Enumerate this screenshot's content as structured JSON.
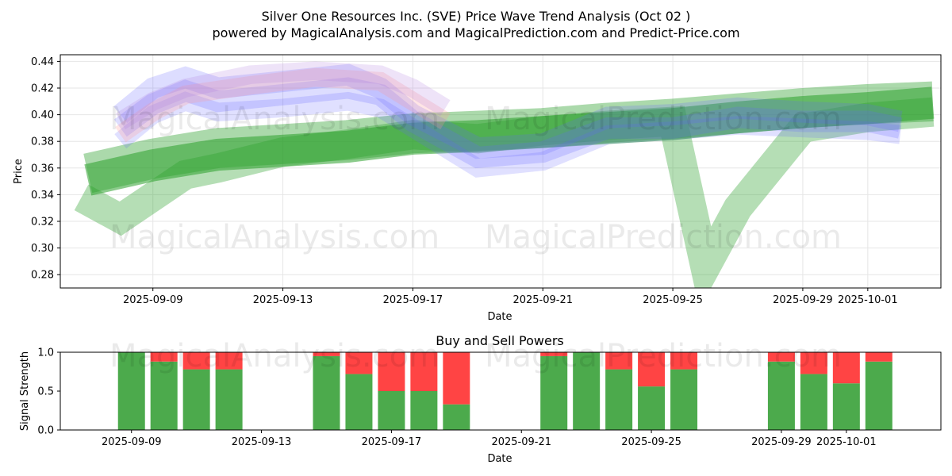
{
  "header": {
    "title": "Silver One Resources Inc. (SVE) Price Wave Trend Analysis (Oct 02 )",
    "subtitle": "powered by MagicalAnalysis.com and MagicalPrediction.com and Predict-Price.com"
  },
  "watermarks": [
    "MagicalAnalysis.com",
    "MagicalPrediction.com"
  ],
  "colors": {
    "green": "#2ca02c",
    "blue": "#6666ff",
    "red_pink": "#ff9999",
    "purple": "#b07fe0",
    "buy": "#4caa4c",
    "sell": "#ff4444"
  },
  "chart_data": [
    {
      "type": "area",
      "title": "",
      "xlabel": "Date",
      "ylabel": "Price",
      "x_ticks": [
        "2025-09-09",
        "2025-09-13",
        "2025-09-17",
        "2025-09-21",
        "2025-09-25",
        "2025-09-29",
        "2025-10-01"
      ],
      "y_ticks": [
        "0.28",
        "0.30",
        "0.32",
        "0.34",
        "0.36",
        "0.38",
        "0.40",
        "0.42",
        "0.44"
      ],
      "xlim": [
        "2025-09-06",
        "2025-10-04"
      ],
      "ylim": [
        0.27,
        0.445
      ],
      "grid": true,
      "bands": [
        {
          "color": "green",
          "opacity": 0.55,
          "width": 0.024,
          "points": [
            [
              "2025-09-07",
              0.351
            ],
            [
              "2025-09-09",
              0.362
            ],
            [
              "2025-09-11",
              0.37
            ],
            [
              "2025-09-13",
              0.373
            ],
            [
              "2025-09-15",
              0.376
            ],
            [
              "2025-09-17",
              0.382
            ],
            [
              "2025-09-19",
              0.384
            ],
            [
              "2025-09-21",
              0.387
            ],
            [
              "2025-09-23",
              0.39
            ],
            [
              "2025-09-25",
              0.393
            ],
            [
              "2025-09-27",
              0.398
            ],
            [
              "2025-09-29",
              0.402
            ],
            [
              "2025-10-01",
              0.405
            ],
            [
              "2025-10-03",
              0.409
            ]
          ]
        },
        {
          "color": "green",
          "opacity": 0.4,
          "width": 0.03,
          "points": [
            [
              "2025-09-07",
              0.356
            ],
            [
              "2025-09-09",
              0.367
            ],
            [
              "2025-09-11",
              0.375
            ],
            [
              "2025-09-13",
              0.378
            ],
            [
              "2025-09-15",
              0.381
            ],
            [
              "2025-09-17",
              0.386
            ],
            [
              "2025-09-19",
              0.388
            ],
            [
              "2025-09-21",
              0.39
            ],
            [
              "2025-09-23",
              0.394
            ],
            [
              "2025-09-25",
              0.397
            ],
            [
              "2025-09-27",
              0.401
            ],
            [
              "2025-09-29",
              0.405
            ],
            [
              "2025-10-01",
              0.408
            ],
            [
              "2025-10-03",
              0.41
            ]
          ]
        },
        {
          "color": "green",
          "opacity": 0.35,
          "width": 0.022,
          "points": [
            [
              "2025-09-06.8",
              0.338
            ],
            [
              "2025-09-08",
              0.322
            ],
            [
              "2025-09-10",
              0.355
            ],
            [
              "2025-09-11",
              0.36
            ],
            [
              "2025-09-13",
              0.372
            ],
            [
              "2025-09-15",
              0.378
            ],
            [
              "2025-09-17",
              0.385
            ],
            [
              "2025-09-19",
              0.382
            ],
            [
              "2025-09-21",
              0.388
            ],
            [
              "2025-09-23",
              0.392
            ],
            [
              "2025-09-25",
              0.395
            ],
            [
              "2025-09-26",
              0.285
            ],
            [
              "2025-09-27",
              0.33
            ],
            [
              "2025-09-29",
              0.39
            ],
            [
              "2025-10-01",
              0.398
            ],
            [
              "2025-10-03",
              0.402
            ]
          ]
        },
        {
          "color": "blue",
          "opacity": 0.22,
          "width": 0.016,
          "points": [
            [
              "2025-09-08",
              0.39
            ],
            [
              "2025-09-09",
              0.408
            ],
            [
              "2025-09-10",
              0.418
            ],
            [
              "2025-09-11",
              0.41
            ],
            [
              "2025-09-13",
              0.415
            ],
            [
              "2025-09-15",
              0.42
            ],
            [
              "2025-09-16",
              0.415
            ],
            [
              "2025-09-17",
              0.395
            ],
            [
              "2025-09-19",
              0.368
            ],
            [
              "2025-09-21",
              0.372
            ],
            [
              "2025-09-23",
              0.39
            ],
            [
              "2025-09-25",
              0.39
            ],
            [
              "2025-09-27",
              0.398
            ],
            [
              "2025-09-29",
              0.395
            ],
            [
              "2025-10-01",
              0.395
            ],
            [
              "2025-10-02",
              0.39
            ]
          ]
        },
        {
          "color": "blue",
          "opacity": 0.22,
          "width": 0.016,
          "points": [
            [
              "2025-09-08",
              0.4
            ],
            [
              "2025-09-09",
              0.42
            ],
            [
              "2025-09-10",
              0.428
            ],
            [
              "2025-09-11",
              0.42
            ],
            [
              "2025-09-13",
              0.425
            ],
            [
              "2025-09-15",
              0.43
            ],
            [
              "2025-09-16",
              0.42
            ],
            [
              "2025-09-17",
              0.4
            ],
            [
              "2025-09-19",
              0.375
            ],
            [
              "2025-09-21",
              0.378
            ],
            [
              "2025-09-23",
              0.398
            ],
            [
              "2025-09-25",
              0.4
            ],
            [
              "2025-09-27",
              0.405
            ],
            [
              "2025-09-29",
              0.402
            ],
            [
              "2025-10-01",
              0.4
            ],
            [
              "2025-10-02",
              0.395
            ]
          ]
        },
        {
          "color": "blue",
          "opacity": 0.2,
          "width": 0.014,
          "points": [
            [
              "2025-09-08",
              0.38
            ],
            [
              "2025-09-09",
              0.4
            ],
            [
              "2025-09-10",
              0.41
            ],
            [
              "2025-09-11",
              0.402
            ],
            [
              "2025-09-13",
              0.405
            ],
            [
              "2025-09-15",
              0.41
            ],
            [
              "2025-09-16",
              0.405
            ],
            [
              "2025-09-17",
              0.39
            ],
            [
              "2025-09-19",
              0.36
            ],
            [
              "2025-09-21",
              0.365
            ],
            [
              "2025-09-23",
              0.385
            ],
            [
              "2025-09-25",
              0.388
            ],
            [
              "2025-09-27",
              0.392
            ],
            [
              "2025-09-29",
              0.39
            ],
            [
              "2025-10-01",
              0.388
            ],
            [
              "2025-10-02",
              0.385
            ]
          ]
        },
        {
          "color": "red_pink",
          "opacity": 0.25,
          "width": 0.014,
          "points": [
            [
              "2025-09-08",
              0.385
            ],
            [
              "2025-09-09",
              0.402
            ],
            [
              "2025-09-10",
              0.415
            ],
            [
              "2025-09-12",
              0.422
            ],
            [
              "2025-09-14",
              0.428
            ],
            [
              "2025-09-16",
              0.425
            ],
            [
              "2025-09-17",
              0.41
            ],
            [
              "2025-09-18",
              0.395
            ]
          ]
        },
        {
          "color": "purple",
          "opacity": 0.22,
          "width": 0.014,
          "points": [
            [
              "2025-09-08",
              0.395
            ],
            [
              "2025-09-09",
              0.41
            ],
            [
              "2025-09-10",
              0.42
            ],
            [
              "2025-09-12",
              0.43
            ],
            [
              "2025-09-14",
              0.433
            ],
            [
              "2025-09-16",
              0.43
            ],
            [
              "2025-09-17",
              0.42
            ],
            [
              "2025-09-18",
              0.405
            ]
          ]
        }
      ]
    },
    {
      "type": "bar",
      "title": "Buy and Sell Powers",
      "xlabel": "Date",
      "ylabel": "Signal Strength",
      "x_ticks": [
        "2025-09-09",
        "2025-09-13",
        "2025-09-17",
        "2025-09-21",
        "2025-09-25",
        "2025-09-29",
        "2025-10-01"
      ],
      "y_ticks": [
        "0.0",
        "0.5",
        "1.0"
      ],
      "ylim": [
        0,
        1
      ],
      "series": [
        {
          "name": "Buy",
          "color": "buy"
        },
        {
          "name": "Sell",
          "color": "sell"
        }
      ],
      "bars": [
        {
          "date": "2025-09-09",
          "buy": 1.0
        },
        {
          "date": "2025-09-10",
          "buy": 0.88
        },
        {
          "date": "2025-09-11",
          "buy": 0.78
        },
        {
          "date": "2025-09-12",
          "buy": 0.78
        },
        {
          "date": "2025-09-15",
          "buy": 0.95
        },
        {
          "date": "2025-09-16",
          "buy": 0.72
        },
        {
          "date": "2025-09-17",
          "buy": 0.5
        },
        {
          "date": "2025-09-18",
          "buy": 0.5
        },
        {
          "date": "2025-09-19",
          "buy": 0.33
        },
        {
          "date": "2025-09-22",
          "buy": 0.95
        },
        {
          "date": "2025-09-23",
          "buy": 1.0
        },
        {
          "date": "2025-09-24",
          "buy": 0.78
        },
        {
          "date": "2025-09-25",
          "buy": 0.56
        },
        {
          "date": "2025-09-26",
          "buy": 0.78
        },
        {
          "date": "2025-09-29",
          "buy": 0.88
        },
        {
          "date": "2025-09-30",
          "buy": 0.72
        },
        {
          "date": "2025-10-01",
          "buy": 0.6
        },
        {
          "date": "2025-10-02",
          "buy": 0.88
        }
      ]
    }
  ]
}
